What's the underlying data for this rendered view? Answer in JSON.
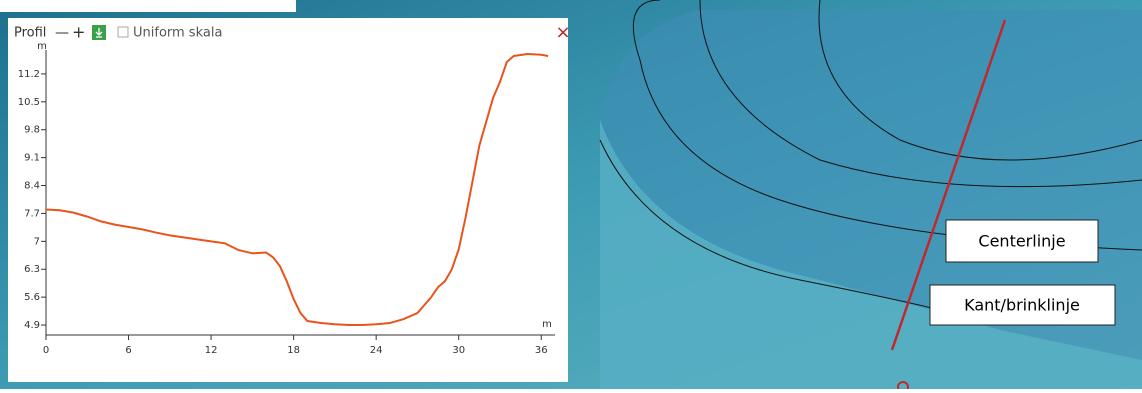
{
  "panel": {
    "title": "Profil",
    "minus": "—",
    "plus": "+",
    "checkbox_label": "Uniform skala",
    "close": "×"
  },
  "map_labels": {
    "centerline": "Centerlinje",
    "edge": "Kant/brinklinje"
  },
  "chart_data": {
    "type": "line",
    "y_label": "m",
    "x_label": "m",
    "x": [
      0,
      1,
      2,
      3,
      4,
      5,
      6,
      7,
      8,
      9,
      10,
      11,
      12,
      13,
      14,
      15,
      16,
      16.5,
      17,
      17.5,
      18,
      18.5,
      19,
      20,
      21,
      22,
      23,
      24,
      25,
      26,
      27,
      27.5,
      28,
      28.5,
      29,
      29.5,
      30,
      30.5,
      31,
      31.5,
      32,
      32.5,
      33,
      33.5,
      34,
      35,
      36,
      36.5
    ],
    "series": [
      {
        "color": "#e8541c",
        "values": [
          7.8,
          7.78,
          7.72,
          7.62,
          7.5,
          7.42,
          7.36,
          7.3,
          7.22,
          7.15,
          7.1,
          7.05,
          7.0,
          6.95,
          6.78,
          6.7,
          6.72,
          6.6,
          6.38,
          6.0,
          5.55,
          5.2,
          5.0,
          4.95,
          4.92,
          4.9,
          4.9,
          4.92,
          4.95,
          5.05,
          5.2,
          5.4,
          5.6,
          5.85,
          6.0,
          6.3,
          6.8,
          7.6,
          8.5,
          9.4,
          10.0,
          10.6,
          11.0,
          11.5,
          11.65,
          11.7,
          11.68,
          11.65
        ]
      }
    ],
    "xlim": [
      0,
      37
    ],
    "ylim": [
      4.65,
      11.8
    ],
    "xticks": [
      0,
      6,
      12,
      18,
      24,
      30,
      36
    ],
    "yticks": [
      4.9,
      5.6,
      6.3,
      7,
      7.7,
      8.4,
      9.1,
      9.8,
      10.5,
      11.2
    ]
  }
}
